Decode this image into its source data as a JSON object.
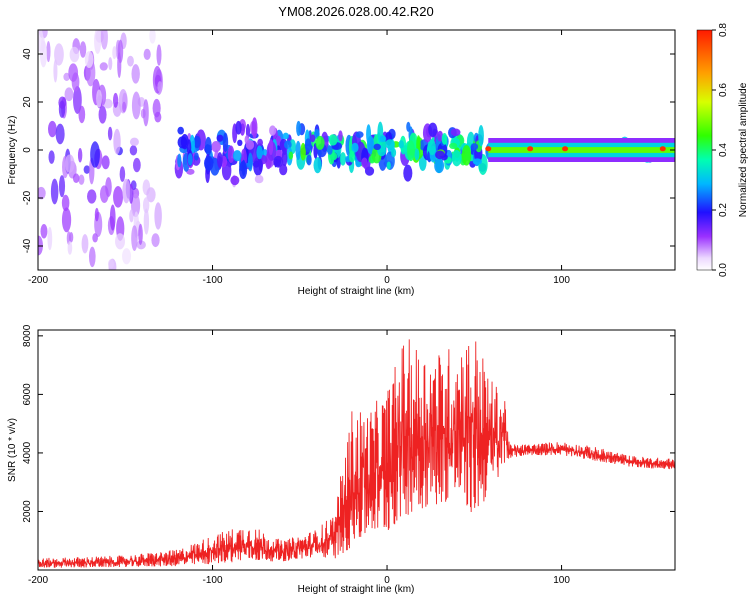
{
  "title": "YM08.2026.028.00.42.R20",
  "chart_data": [
    {
      "type": "heatmap",
      "xlabel": "Height of straight line (km)",
      "ylabel": "Frequency (Hz)",
      "xlim": [
        -200,
        165
      ],
      "ylim": [
        -50,
        50
      ],
      "xticks": [
        -200,
        -100,
        0,
        100
      ],
      "yticks": [
        -40,
        -20,
        0,
        20,
        40
      ],
      "colorbar": {
        "label": "Normalized spectral amplitude",
        "range": [
          0.0,
          0.8
        ],
        "ticks": [
          "0.0",
          "0.2",
          "0.4",
          "0.6",
          "0.8"
        ]
      },
      "regions": [
        {
          "x": [
            -200,
            -130
          ],
          "freq_spread": 50,
          "amplitude": 0.15,
          "description": "scattered noise"
        },
        {
          "x": [
            -120,
            -60
          ],
          "freq_spread": 15,
          "amplitude": 0.25
        },
        {
          "x": [
            -60,
            55
          ],
          "freq_spread": 12,
          "amplitude": 0.4
        },
        {
          "x": [
            58,
            165
          ],
          "freq_spread": 2,
          "amplitude": 0.55,
          "peaks_x": [
            58,
            82,
            102,
            158
          ]
        }
      ]
    },
    {
      "type": "line",
      "xlabel": "Height of straight line (km)",
      "ylabel": "SNR (10 * v/v)",
      "xlim": [
        -200,
        165
      ],
      "ylim": [
        0,
        8200
      ],
      "xticks": [
        -200,
        -100,
        0,
        100
      ],
      "yticks": [
        2000,
        4000,
        6000,
        8000
      ],
      "color": "#ee2222",
      "envelope": {
        "x": [
          -200,
          -150,
          -120,
          -100,
          -80,
          -60,
          -40,
          -30,
          -20,
          -10,
          0,
          10,
          20,
          30,
          40,
          50,
          60,
          68,
          70,
          80,
          100,
          120,
          140,
          165
        ],
        "low": [
          50,
          80,
          100,
          150,
          250,
          250,
          400,
          300,
          500,
          1000,
          1000,
          1500,
          1800,
          2000,
          2100,
          1500,
          2500,
          3500,
          3800,
          3900,
          3900,
          3700,
          3500,
          3400
        ],
        "high": [
          400,
          500,
          700,
          1200,
          1600,
          1000,
          1400,
          2000,
          5600,
          5500,
          6200,
          8000,
          7600,
          7500,
          7800,
          8200,
          6500,
          6000,
          4300,
          4300,
          4400,
          4200,
          3900,
          3800
        ]
      }
    }
  ]
}
